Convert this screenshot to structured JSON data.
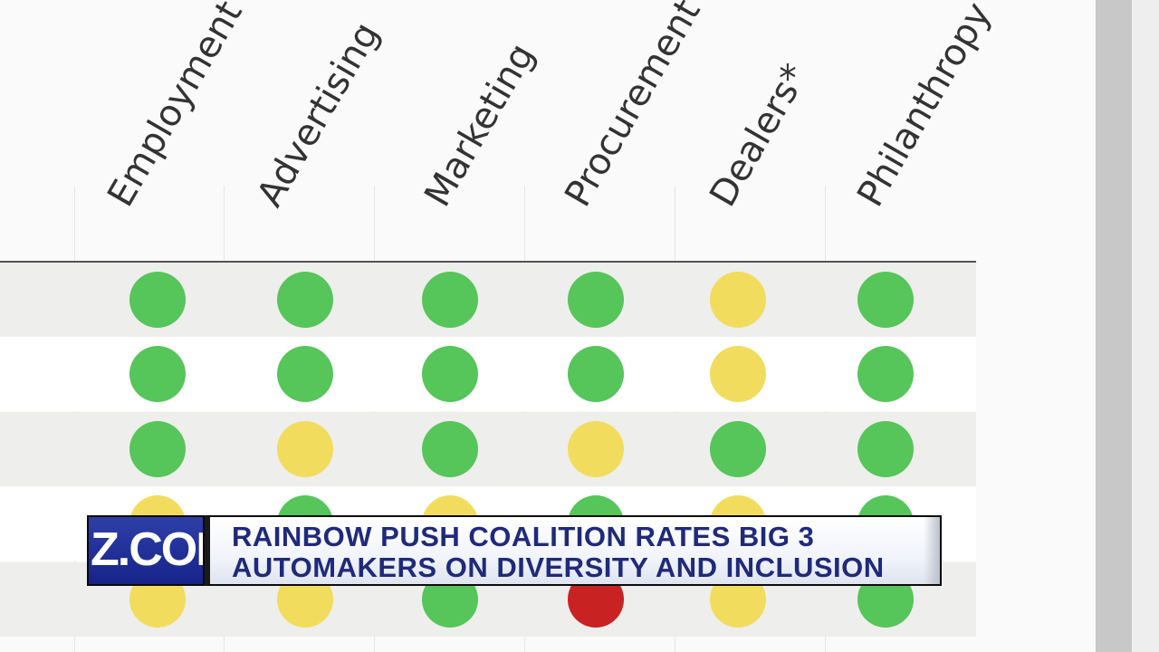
{
  "scorecard": {
    "columns": [
      "Employment",
      "Advertising",
      "Marketing",
      "Procurement",
      "Dealers*",
      "Philanthropy"
    ],
    "rows": [
      [
        "green",
        "green",
        "green",
        "green",
        "yellow",
        "green"
      ],
      [
        "green",
        "green",
        "green",
        "green",
        "yellow",
        "green"
      ],
      [
        "green",
        "yellow",
        "green",
        "yellow",
        "green",
        "green"
      ],
      [
        "yellow",
        "green",
        "yellow",
        "green",
        "yellow",
        "green"
      ],
      [
        "yellow",
        "yellow",
        "green",
        "red",
        "yellow",
        "green"
      ]
    ],
    "colors": {
      "green": "#56c55a",
      "yellow": "#f2dc5d",
      "red": "#c92222"
    }
  },
  "lower_third": {
    "logo_text": "Z.COM",
    "headline_line1": "RAINBOW PUSH COALITION RATES BIG 3",
    "headline_line2": "AUTOMAKERS ON DIVERSITY AND INCLUSION"
  }
}
